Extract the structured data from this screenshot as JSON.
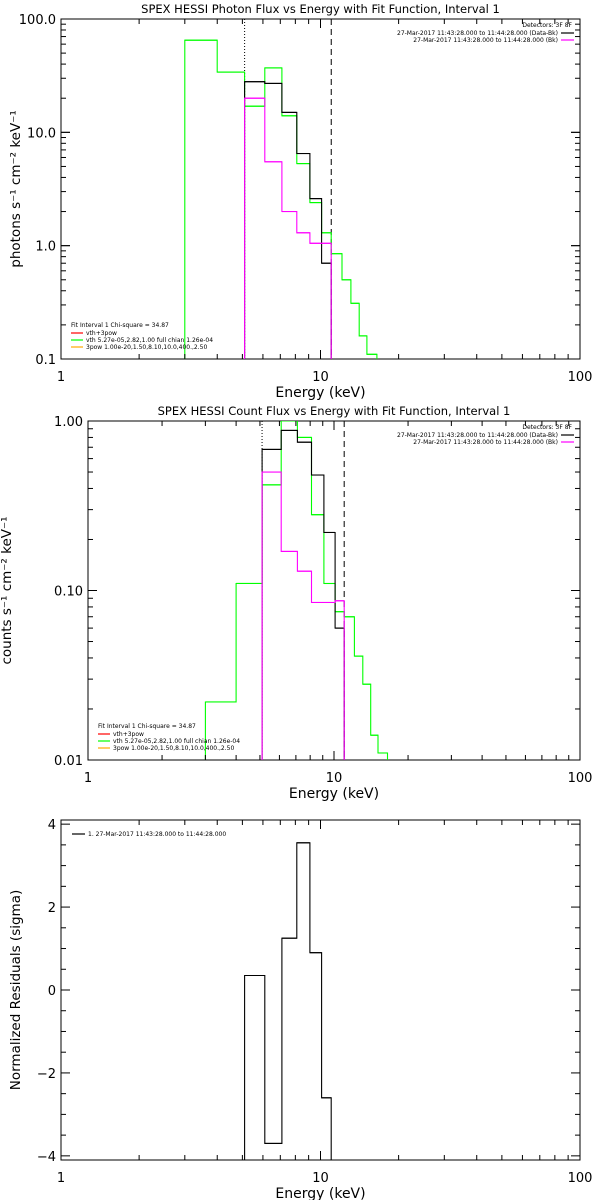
{
  "chart_data": [
    {
      "type": "line",
      "title": "SPEX HESSI Photon Flux vs Energy with Fit Function, Interval 1",
      "xlabel": "Energy (keV)",
      "ylabel": "photons s⁻¹ cm⁻² keV⁻¹",
      "xscale": "log",
      "yscale": "log",
      "xlim": [
        1,
        100
      ],
      "ylim": [
        0.1,
        100
      ],
      "xticks": [
        {
          "v": 1,
          "label": "1"
        },
        {
          "v": 10,
          "label": "10"
        },
        {
          "v": 100,
          "label": "100"
        }
      ],
      "yticks": [
        {
          "v": 0.1,
          "label": "0.1"
        },
        {
          "v": 1,
          "label": "1.0"
        },
        {
          "v": 10,
          "label": "10.0"
        },
        {
          "v": 100,
          "label": "100.0"
        }
      ],
      "grid": false,
      "vlines": [
        {
          "x": 5.1,
          "style": "dotted"
        },
        {
          "x": 11.0,
          "style": "dashed"
        }
      ],
      "top_legend": {
        "header": "Detectors: 3F 8F",
        "lines": [
          {
            "text": "27-Mar-2017 11:43:28.000 to 11:44:28.000 (Data-Bk)",
            "color": "#000000"
          },
          {
            "text": "27-Mar-2017 11:43:28.000 to 11:44:28.000 (Bk)",
            "color": "#ff00ff"
          }
        ]
      },
      "bottom_legend": {
        "header": "Fit Interval  1    Chi-square = 34.87",
        "lines": [
          {
            "text": "vth+3pow",
            "color": "#ff0000"
          },
          {
            "text": "vth 5.27e-05,2.82,1.00  full chian 1.26e-04",
            "color": "#00ff00"
          },
          {
            "text": "3pow  1.00e-20,1.50,8.10,10.0,400.,2.50",
            "color": "#ffaa00"
          }
        ]
      },
      "series": [
        {
          "color": "#00ff00",
          "edges": [
            3.0,
            4.0,
            5.1,
            6.1,
            7.1,
            8.1,
            9.1,
            10.1,
            11.0,
            12.1,
            13.1,
            14.1,
            15.1,
            16.5
          ],
          "values": [
            65,
            34,
            17,
            37,
            14,
            5.3,
            2.4,
            1.3,
            0.85,
            0.5,
            0.31,
            0.16,
            0.11
          ]
        },
        {
          "color": "#000000",
          "edges": [
            5.1,
            6.1,
            7.1,
            8.1,
            9.1,
            10.1,
            11.0
          ],
          "values": [
            28,
            27,
            15,
            6.5,
            2.6,
            0.7
          ]
        },
        {
          "color": "#ff00ff",
          "edges": [
            5.1,
            6.1,
            7.1,
            8.1,
            9.1,
            10.1,
            11.0
          ],
          "values": [
            20,
            5.5,
            2.0,
            1.3,
            1.05,
            1.05
          ]
        }
      ]
    },
    {
      "type": "line",
      "title": "SPEX HESSI Count Flux vs Energy with Fit Function, Interval 1",
      "xlabel": "Energy (keV)",
      "ylabel": "counts s⁻¹ cm⁻² keV⁻¹",
      "xscale": "log",
      "yscale": "log",
      "xlim": [
        1,
        100
      ],
      "ylim": [
        0.01,
        1
      ],
      "xticks": [
        {
          "v": 1,
          "label": "1"
        },
        {
          "v": 10,
          "label": "10"
        },
        {
          "v": 100,
          "label": "100"
        }
      ],
      "yticks": [
        {
          "v": 0.01,
          "label": "0.01"
        },
        {
          "v": 0.1,
          "label": "0.10"
        },
        {
          "v": 1,
          "label": "1.00"
        }
      ],
      "grid": false,
      "vlines": [
        {
          "x": 5.1,
          "style": "dotted"
        },
        {
          "x": 11.0,
          "style": "dashed"
        }
      ],
      "top_legend": {
        "header": "Detectors: 3F 8F",
        "lines": [
          {
            "text": "27-Mar-2017 11:43:28.000 to 11:44:28.000 (Data-Bk)",
            "color": "#000000"
          },
          {
            "text": "27-Mar-2017 11:43:28.000 to 11:44:28.000 (Bk)",
            "color": "#ff00ff"
          }
        ]
      },
      "bottom_legend": {
        "header": "Fit Interval  1    Chi-square = 34.87",
        "lines": [
          {
            "text": "vth+3pow",
            "color": "#ff0000"
          },
          {
            "text": "vth 5.27e-05,2.82,1.00  full chian 1.26e-04",
            "color": "#00ff00"
          },
          {
            "text": "3pow  1.00e-20,1.50,8.10,10.0,400.,2.50",
            "color": "#ffaa00"
          }
        ]
      },
      "series": [
        {
          "color": "#00ff00",
          "edges": [
            3.0,
            4.0,
            5.1,
            6.1,
            7.1,
            8.1,
            9.1,
            10.1,
            11.0,
            12.1,
            13.1,
            14.1,
            15.1,
            16.5
          ],
          "values": [
            0.022,
            0.11,
            0.42,
            1.0,
            0.8,
            0.28,
            0.11,
            0.075,
            0.07,
            0.041,
            0.028,
            0.014,
            0.011
          ]
        },
        {
          "color": "#000000",
          "edges": [
            5.1,
            6.1,
            7.1,
            8.1,
            9.1,
            10.1,
            11.0
          ],
          "values": [
            0.68,
            0.88,
            0.75,
            0.48,
            0.22,
            0.06
          ]
        },
        {
          "color": "#ff00ff",
          "edges": [
            5.1,
            6.1,
            7.1,
            8.1,
            9.1,
            10.1,
            11.0
          ],
          "values": [
            0.5,
            0.17,
            0.13,
            0.085,
            0.085,
            0.087
          ]
        }
      ]
    },
    {
      "type": "line",
      "title": "",
      "xlabel": "Energy (keV)",
      "ylabel": "Normalized Residuals (sigma)",
      "xscale": "log",
      "yscale": "linear",
      "xlim": [
        1,
        100
      ],
      "ylim": [
        -4.1,
        4.1
      ],
      "xticks": [
        {
          "v": 1,
          "label": "1"
        },
        {
          "v": 10,
          "label": "10"
        },
        {
          "v": 100,
          "label": "100"
        }
      ],
      "yticks": [
        {
          "v": -4,
          "label": "−4"
        },
        {
          "v": -2,
          "label": "−2"
        },
        {
          "v": 0,
          "label": "0"
        },
        {
          "v": 2,
          "label": "2"
        },
        {
          "v": 4,
          "label": "4"
        }
      ],
      "grid": false,
      "vlines": [],
      "top_legend": null,
      "left_legend": {
        "text": "1. 27-Mar-2017 11:43:28.000 to 11:44:28.000",
        "color": "#000000"
      },
      "bottom_legend": null,
      "series": [
        {
          "color": "#000000",
          "edges": [
            5.1,
            6.1,
            7.1,
            8.1,
            9.1,
            10.1,
            11.0
          ],
          "values": [
            0.35,
            -3.7,
            1.25,
            3.55,
            0.9,
            -2.6
          ]
        }
      ]
    }
  ]
}
